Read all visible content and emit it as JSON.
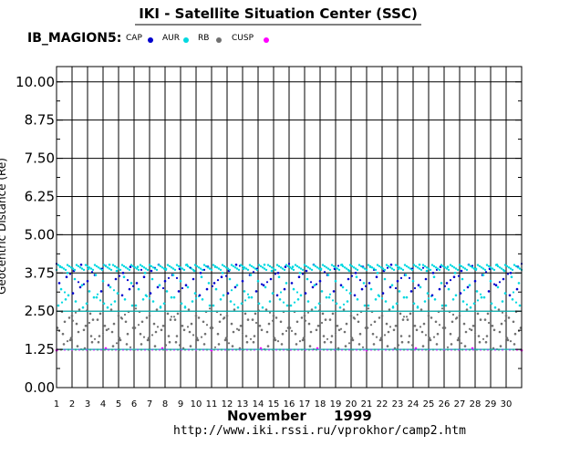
{
  "header": {
    "title": "IKI - Satellite Situation Center (SSC)",
    "satellite": "IB_MAGION5:"
  },
  "legend": [
    {
      "label": "CAP",
      "color": "#0000cd"
    },
    {
      "label": "AUR",
      "color": "#00d8e0"
    },
    {
      "label": "RB",
      "color": "#707070"
    },
    {
      "label": "CUSP",
      "color": "#ff00ff"
    }
  ],
  "footer": {
    "month": "November",
    "year": "1999",
    "url": "http://www.iki.rssi.ru/vprokhor/camp2.htm"
  },
  "chart_data": {
    "type": "scatter",
    "title": "IKI - Satellite Situation Center (SSC)",
    "ylabel": "Geocentric Distance (Re)",
    "xlabel": "November 1999",
    "x_range": [
      1,
      31
    ],
    "ylim": [
      0,
      10.5
    ],
    "x_ticks": [
      "1",
      "2",
      "3",
      "4",
      "5",
      "6",
      "7",
      "8",
      "9",
      "10",
      "11",
      "12",
      "13",
      "14",
      "15",
      "16",
      "17",
      "18",
      "19",
      "20",
      "21",
      "22",
      "23",
      "24",
      "25",
      "26",
      "27",
      "28",
      "29",
      "30"
    ],
    "y_ticks": [
      "0.00",
      "1.25",
      "2.50",
      "3.75",
      "5.00",
      "6.25",
      "7.50",
      "8.75",
      "10.00"
    ],
    "y_tick_values": [
      0,
      1.25,
      2.5,
      3.75,
      5.0,
      6.25,
      7.5,
      8.75,
      10.0
    ],
    "grid": true,
    "reference_lines": [
      1.25,
      2.5
    ],
    "orbits_per_day": 2.2,
    "series": [
      {
        "name": "CAP",
        "color": "#0000cd",
        "y_range": [
          3.0,
          3.9
        ]
      },
      {
        "name": "AUR",
        "color": "#00d8e0",
        "y_range": [
          1.3,
          4.1
        ]
      },
      {
        "name": "RB",
        "color": "#707070",
        "y_range": [
          1.2,
          2.6
        ]
      },
      {
        "name": "CUSP",
        "color": "#ff00ff",
        "y_range": [
          1.2,
          1.3
        ]
      }
    ]
  }
}
